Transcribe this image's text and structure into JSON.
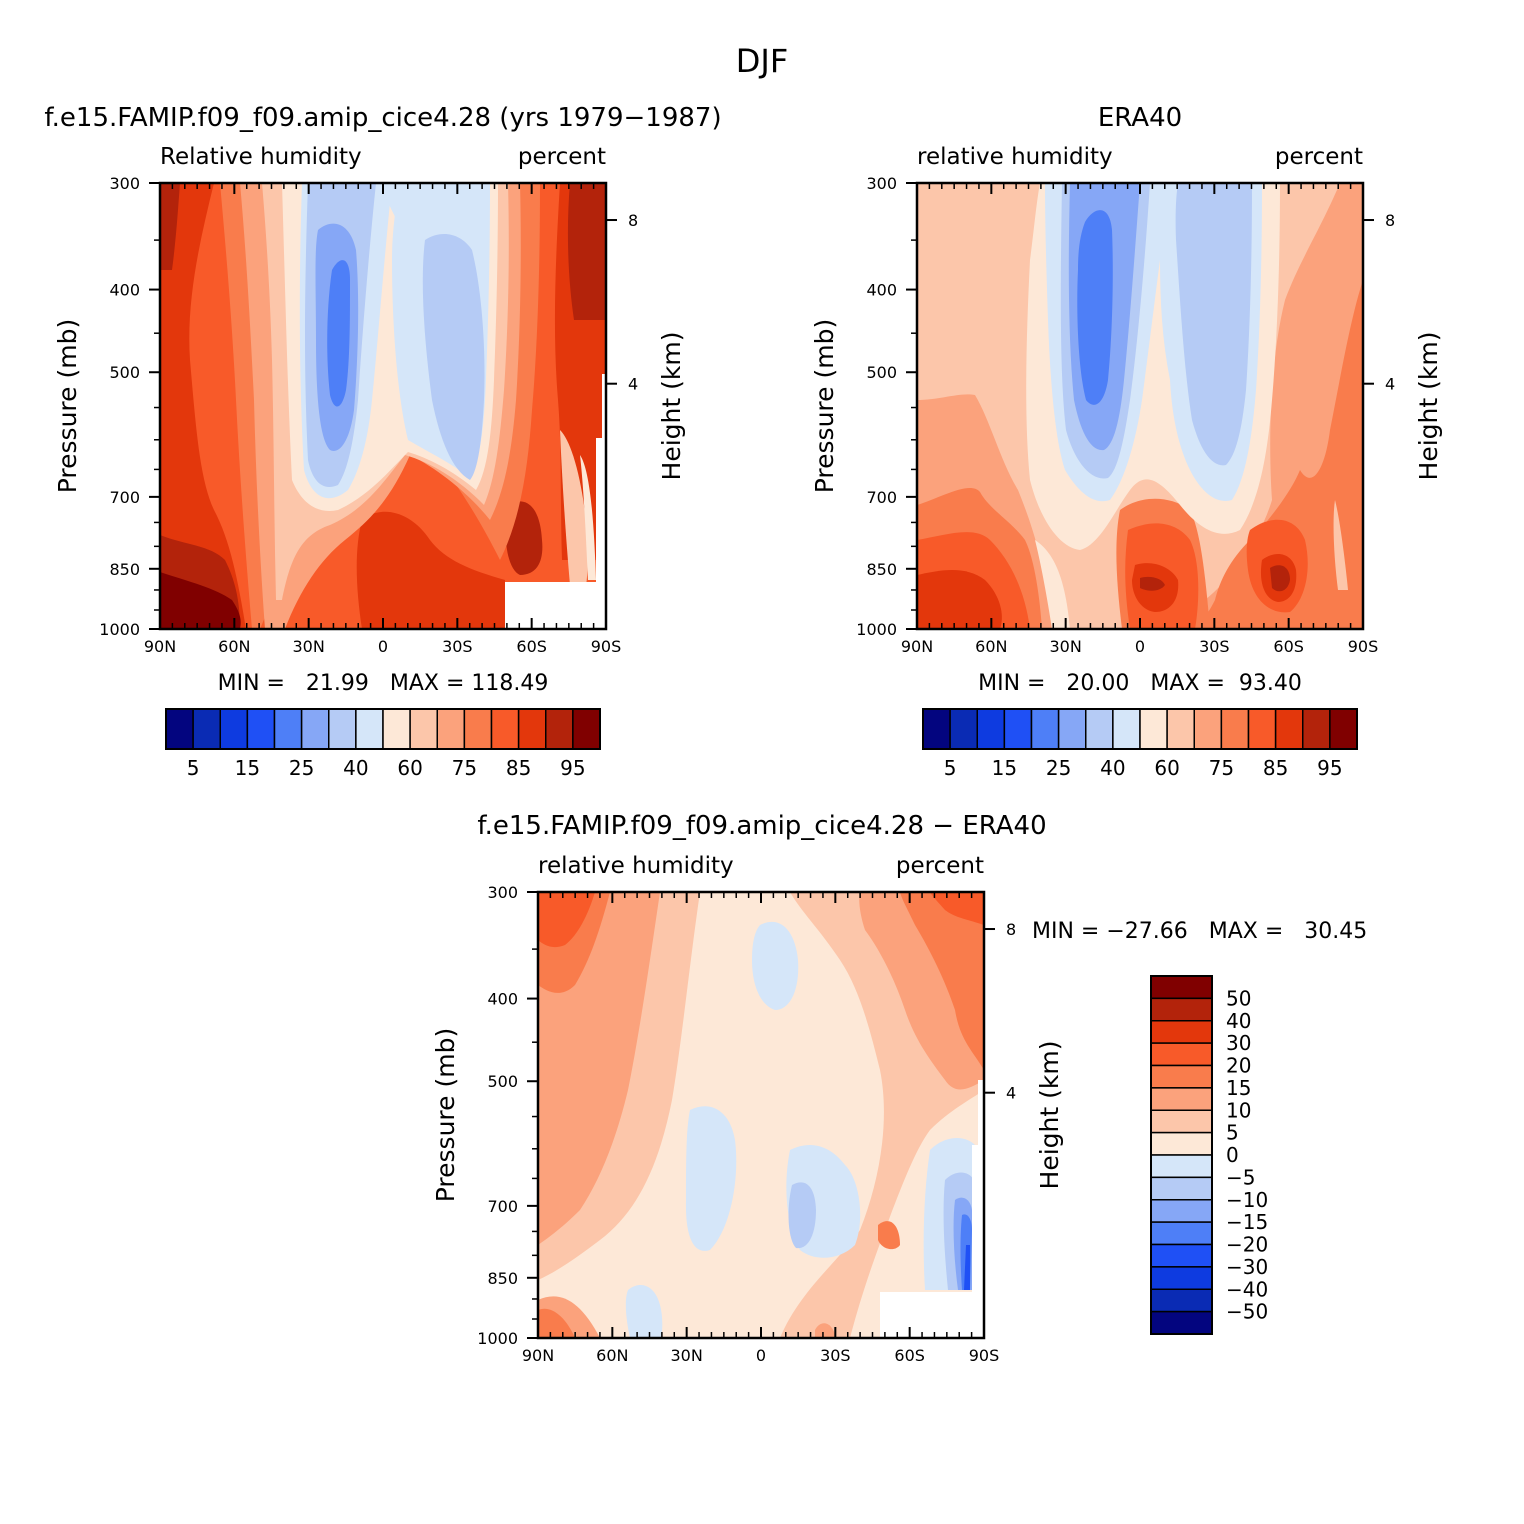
{
  "figure": {
    "title": "DJF"
  },
  "chart_data": [
    {
      "type": "heatmap",
      "name": "model",
      "title": "f.e15.FAMIP.f09_f09.amip_cice4.28 (yrs 1979−1987)",
      "left_label": "Relative humidity",
      "right_label": "percent",
      "xlabel": "",
      "ylabel": "Pressure (mb)",
      "y2label": "Height (km)",
      "x_tick_labels": [
        "90N",
        "60N",
        "30N",
        "0",
        "30S",
        "60S",
        "90S"
      ],
      "y_tick_labels": [
        "300",
        "400",
        "500",
        "700",
        "850",
        "1000"
      ],
      "y2_tick_labels": [
        "8",
        "4"
      ],
      "stats": "MIN =   21.99   MAX = 118.49",
      "min": 21.99,
      "max": 118.49,
      "colorbar": {
        "orientation": "horizontal",
        "tick_labels": [
          "5",
          "15",
          "25",
          "40",
          "60",
          "75",
          "85",
          "95"
        ],
        "colors": [
          "#03057f",
          "#0a2bb4",
          "#0e3be0",
          "#1f50f5",
          "#4e7ff7",
          "#86a7f6",
          "#b5cbf5",
          "#d5e6f9",
          "#fde8d7",
          "#fcc6aa",
          "#fba27c",
          "#f97c4c",
          "#f85a29",
          "#e3370c",
          "#b3230b",
          "#800000"
        ]
      }
    },
    {
      "type": "heatmap",
      "name": "obs",
      "title": "ERA40",
      "left_label": "relative humidity",
      "right_label": "percent",
      "xlabel": "",
      "ylabel": "Pressure (mb)",
      "y2label": "Height (km)",
      "x_tick_labels": [
        "90N",
        "60N",
        "30N",
        "0",
        "30S",
        "60S",
        "90S"
      ],
      "y_tick_labels": [
        "300",
        "400",
        "500",
        "700",
        "850",
        "1000"
      ],
      "y2_tick_labels": [
        "8",
        "4"
      ],
      "stats": "MIN =   20.00   MAX =  93.40",
      "min": 20.0,
      "max": 93.4,
      "colorbar": {
        "orientation": "horizontal",
        "tick_labels": [
          "5",
          "15",
          "25",
          "40",
          "60",
          "75",
          "85",
          "95"
        ],
        "colors": [
          "#03057f",
          "#0a2bb4",
          "#0e3be0",
          "#1f50f5",
          "#4e7ff7",
          "#86a7f6",
          "#b5cbf5",
          "#d5e6f9",
          "#fde8d7",
          "#fcc6aa",
          "#fba27c",
          "#f97c4c",
          "#f85a29",
          "#e3370c",
          "#b3230b",
          "#800000"
        ]
      }
    },
    {
      "type": "heatmap",
      "name": "diff",
      "title": "f.e15.FAMIP.f09_f09.amip_cice4.28 − ERA40",
      "left_label": "relative humidity",
      "right_label": "percent",
      "xlabel": "",
      "ylabel": "Pressure (mb)",
      "y2label": "Height (km)",
      "x_tick_labels": [
        "90N",
        "60N",
        "30N",
        "0",
        "30S",
        "60S",
        "90S"
      ],
      "y_tick_labels": [
        "300",
        "400",
        "500",
        "700",
        "850",
        "1000"
      ],
      "y2_tick_labels": [
        "8",
        "4"
      ],
      "stats": "MIN = −27.66   MAX =   30.45",
      "min": -27.66,
      "max": 30.45,
      "colorbar": {
        "orientation": "vertical",
        "tick_labels": [
          "50",
          "40",
          "30",
          "20",
          "15",
          "10",
          "5",
          "0",
          "−5",
          "−10",
          "−15",
          "−20",
          "−30",
          "−40",
          "−50"
        ],
        "colors": [
          "#800000",
          "#b3230b",
          "#e3370c",
          "#f85a29",
          "#f97c4c",
          "#fba27c",
          "#fcc6aa",
          "#fde8d7",
          "#d5e6f9",
          "#b5cbf5",
          "#86a7f6",
          "#4e7ff7",
          "#1f50f5",
          "#0e3be0",
          "#0a2bb4",
          "#03057f"
        ]
      }
    }
  ]
}
